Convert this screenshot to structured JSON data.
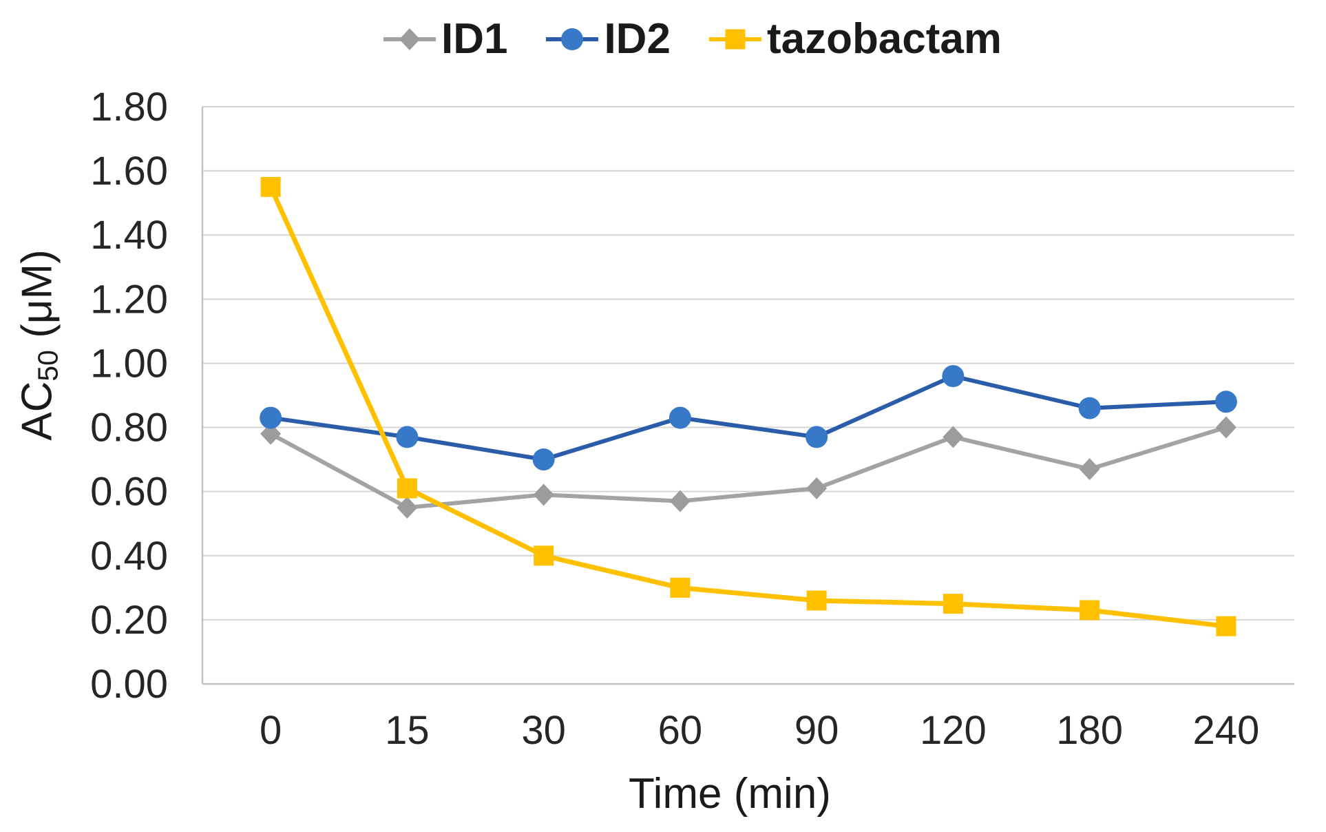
{
  "chart_data": {
    "type": "line",
    "categories": [
      "0",
      "15",
      "30",
      "60",
      "90",
      "120",
      "180",
      "240"
    ],
    "series": [
      {
        "name": "ID1",
        "marker": "diamond",
        "line_color": "#A3A3A3",
        "marker_color": "#9C9C9C",
        "values": [
          0.78,
          0.55,
          0.59,
          0.57,
          0.61,
          0.77,
          0.67,
          0.8
        ]
      },
      {
        "name": "ID2",
        "marker": "circle",
        "line_color": "#2A5CAA",
        "marker_color": "#3878C8",
        "values": [
          0.83,
          0.77,
          0.7,
          0.83,
          0.77,
          0.96,
          0.86,
          0.88
        ]
      },
      {
        "name": "tazobactam",
        "marker": "square",
        "line_color": "#FFC000",
        "marker_color": "#FFC000",
        "values": [
          1.55,
          0.61,
          0.4,
          0.3,
          0.26,
          0.25,
          0.23,
          0.18
        ]
      }
    ],
    "xlabel": "Time (min)",
    "ylabel": "AC50 (μM)",
    "ylabel_parts": {
      "base": "AC",
      "sub": "50",
      "unit": " (μM)"
    },
    "ylim": [
      0.0,
      1.8
    ],
    "ytick_step": 0.2,
    "ytick_labels": [
      "0.00",
      "0.20",
      "0.40",
      "0.60",
      "0.80",
      "1.00",
      "1.20",
      "1.40",
      "1.60",
      "1.80"
    ],
    "grid": "horizontal-only",
    "legend_position": "top-center",
    "colors": {
      "gridline": "#D6D6D6",
      "axis_line": "#C2C2C2",
      "tick_label": "#262626",
      "background": "#FFFFFF"
    }
  }
}
